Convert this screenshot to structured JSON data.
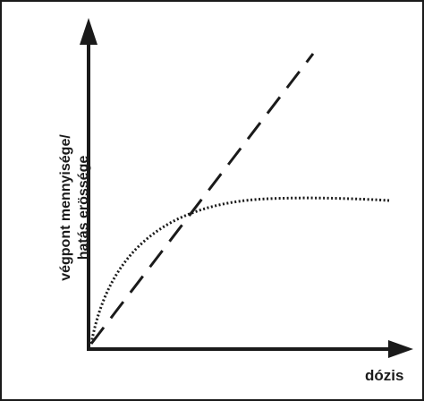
{
  "diagram": {
    "y_axis_label_line1": "végpont mennyisége/",
    "y_axis_label_line2": "hatás erössége",
    "x_axis_label": "dózis",
    "curves": [
      {
        "style": "dashed",
        "shape": "linear"
      },
      {
        "style": "dotted",
        "shape": "saturating"
      }
    ],
    "colors": {
      "ink": "#1a1a1a",
      "background": "#ffffff"
    }
  }
}
